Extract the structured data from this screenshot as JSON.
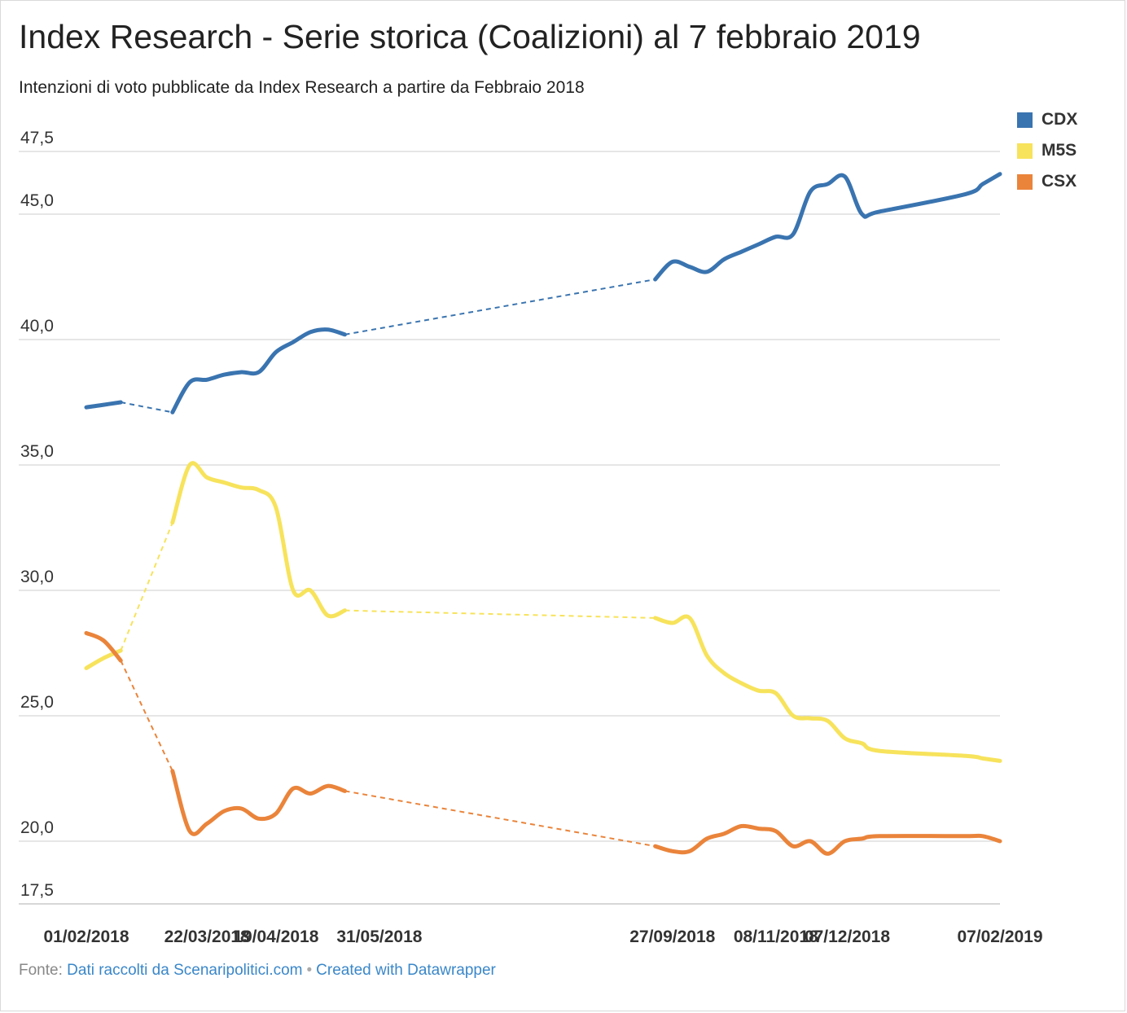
{
  "title": "Index Research - Serie storica (Coalizioni) al 7 febbraio 2019",
  "subtitle": "Intenzioni di voto pubblicate da Index Research a partire da Febbraio 2018",
  "legend": [
    {
      "label": "CDX",
      "color": "#3a74b0"
    },
    {
      "label": "M5S",
      "color": "#f7e35c"
    },
    {
      "label": "CSX",
      "color": "#ea843b"
    }
  ],
  "footer": {
    "prefix": "Fonte:",
    "source_link": "Dati raccolti da Scenaripolitici.com",
    "separator": "•",
    "credit_link": "Created with Datawrapper"
  },
  "chart_data": {
    "type": "line",
    "title": "Index Research - Serie storica (Coalizioni) al 7 febbraio 2019",
    "xlabel": "",
    "ylabel": "",
    "ylim": [
      17.5,
      47.5
    ],
    "y_ticks": [
      "47,5",
      "45,0",
      "40,0",
      "35,0",
      "30,0",
      "25,0",
      "20,0",
      "17,5"
    ],
    "y_tick_values": [
      47.5,
      45.0,
      40.0,
      35.0,
      30.0,
      25.0,
      20.0,
      17.5
    ],
    "x_tick_labels": [
      "01/02/2018",
      "22/03/2018",
      "19/04/2018",
      "31/05/2018",
      "27/09/2018",
      "08/11/2018",
      "07/12/2018",
      "07/02/2019"
    ],
    "x_tick_dates": [
      "2018-02-01",
      "2018-03-22",
      "2018-04-19",
      "2018-05-31",
      "2018-09-27",
      "2018-11-08",
      "2018-12-07",
      "2019-02-07"
    ],
    "grid": true,
    "legend_position": "top-right",
    "gap_style": "dashed",
    "series": [
      {
        "name": "CDX",
        "color": "#3a74b0",
        "segments": [
          [
            [
              "2018-02-01",
              37.3
            ],
            [
              "2018-02-08",
              37.4
            ],
            [
              "2018-02-15",
              37.5
            ]
          ],
          [
            [
              "2018-03-08",
              37.1
            ],
            [
              "2018-03-15",
              38.3
            ],
            [
              "2018-03-22",
              38.4
            ],
            [
              "2018-03-29",
              38.6
            ],
            [
              "2018-04-05",
              38.7
            ],
            [
              "2018-04-12",
              38.7
            ],
            [
              "2018-04-19",
              39.5
            ],
            [
              "2018-04-26",
              39.9
            ],
            [
              "2018-05-03",
              40.3
            ],
            [
              "2018-05-10",
              40.4
            ],
            [
              "2018-05-17",
              40.2
            ]
          ],
          [
            [
              "2018-09-20",
              42.4
            ],
            [
              "2018-09-27",
              43.1
            ],
            [
              "2018-10-04",
              42.9
            ],
            [
              "2018-10-11",
              42.7
            ],
            [
              "2018-10-18",
              43.2
            ],
            [
              "2018-10-25",
              43.5
            ],
            [
              "2018-11-01",
              43.8
            ],
            [
              "2018-11-08",
              44.1
            ],
            [
              "2018-11-15",
              44.2
            ],
            [
              "2018-11-22",
              45.9
            ],
            [
              "2018-11-29",
              46.2
            ],
            [
              "2018-12-06",
              46.5
            ],
            [
              "2018-12-13",
              45.0
            ],
            [
              "2018-12-20",
              45.1
            ],
            [
              "2019-01-24",
              45.8
            ],
            [
              "2019-01-31",
              46.2
            ],
            [
              "2019-02-07",
              46.6
            ]
          ]
        ]
      },
      {
        "name": "M5S",
        "color": "#f7e35c",
        "segments": [
          [
            [
              "2018-02-01",
              26.9
            ],
            [
              "2018-02-08",
              27.3
            ],
            [
              "2018-02-15",
              27.6
            ]
          ],
          [
            [
              "2018-03-08",
              32.7
            ],
            [
              "2018-03-15",
              35.0
            ],
            [
              "2018-03-22",
              34.5
            ],
            [
              "2018-03-29",
              34.3
            ],
            [
              "2018-04-05",
              34.1
            ],
            [
              "2018-04-12",
              34.0
            ],
            [
              "2018-04-19",
              33.3
            ],
            [
              "2018-04-26",
              30.0
            ],
            [
              "2018-05-03",
              30.0
            ],
            [
              "2018-05-10",
              29.0
            ],
            [
              "2018-05-17",
              29.2
            ]
          ],
          [
            [
              "2018-09-20",
              28.9
            ],
            [
              "2018-09-27",
              28.7
            ],
            [
              "2018-10-04",
              28.9
            ],
            [
              "2018-10-11",
              27.4
            ],
            [
              "2018-10-18",
              26.7
            ],
            [
              "2018-10-25",
              26.3
            ],
            [
              "2018-11-01",
              26.0
            ],
            [
              "2018-11-08",
              25.9
            ],
            [
              "2018-11-15",
              25.0
            ],
            [
              "2018-11-22",
              24.9
            ],
            [
              "2018-11-29",
              24.8
            ],
            [
              "2018-12-06",
              24.1
            ],
            [
              "2018-12-13",
              23.9
            ],
            [
              "2018-12-20",
              23.6
            ],
            [
              "2019-01-24",
              23.4
            ],
            [
              "2019-01-31",
              23.3
            ],
            [
              "2019-02-07",
              23.2
            ]
          ]
        ]
      },
      {
        "name": "CSX",
        "color": "#ea843b",
        "segments": [
          [
            [
              "2018-02-01",
              28.3
            ],
            [
              "2018-02-08",
              28.0
            ],
            [
              "2018-02-15",
              27.2
            ]
          ],
          [
            [
              "2018-03-08",
              22.8
            ],
            [
              "2018-03-15",
              20.4
            ],
            [
              "2018-03-22",
              20.7
            ],
            [
              "2018-03-29",
              21.2
            ],
            [
              "2018-04-05",
              21.3
            ],
            [
              "2018-04-12",
              20.9
            ],
            [
              "2018-04-19",
              21.1
            ],
            [
              "2018-04-26",
              22.1
            ],
            [
              "2018-05-03",
              21.9
            ],
            [
              "2018-05-10",
              22.2
            ],
            [
              "2018-05-17",
              22.0
            ]
          ],
          [
            [
              "2018-09-20",
              19.8
            ],
            [
              "2018-09-27",
              19.6
            ],
            [
              "2018-10-04",
              19.6
            ],
            [
              "2018-10-11",
              20.1
            ],
            [
              "2018-10-18",
              20.3
            ],
            [
              "2018-10-25",
              20.6
            ],
            [
              "2018-11-01",
              20.5
            ],
            [
              "2018-11-08",
              20.4
            ],
            [
              "2018-11-15",
              19.8
            ],
            [
              "2018-11-22",
              20.0
            ],
            [
              "2018-11-29",
              19.5
            ],
            [
              "2018-12-06",
              20.0
            ],
            [
              "2018-12-13",
              20.1
            ],
            [
              "2018-12-20",
              20.2
            ],
            [
              "2019-01-24",
              20.2
            ],
            [
              "2019-01-31",
              20.2
            ],
            [
              "2019-02-07",
              20.0
            ]
          ]
        ]
      }
    ]
  }
}
